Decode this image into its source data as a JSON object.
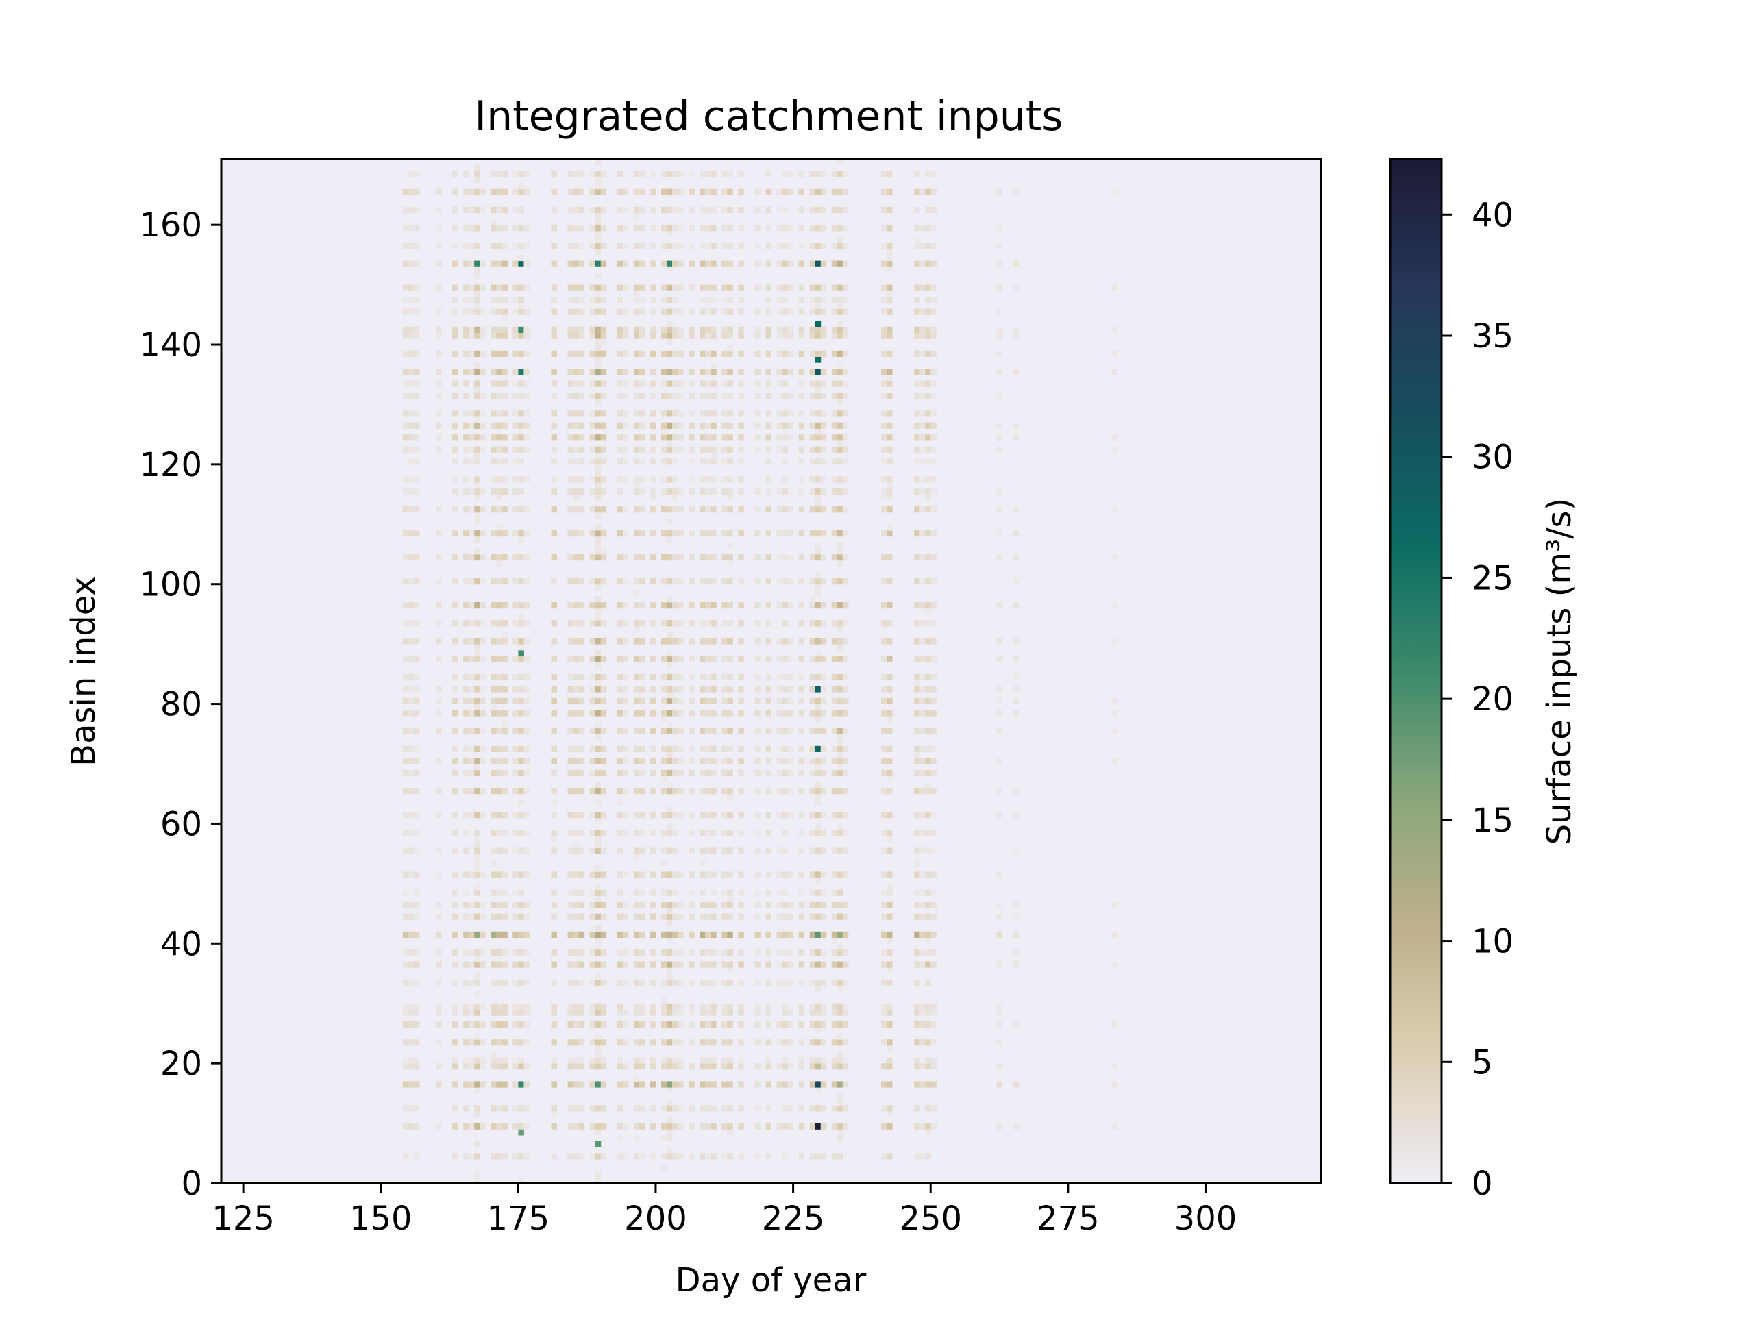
{
  "chart_data": {
    "type": "heatmap",
    "title": "Integrated catchment inputs",
    "xlabel": "Day of year",
    "ylabel": "Basin index",
    "colorbar_label": "Surface inputs (m³/s)",
    "xlim": [
      121,
      321
    ],
    "ylim": [
      0,
      171
    ],
    "x_ticks": [
      125,
      150,
      175,
      200,
      225,
      250,
      275,
      300
    ],
    "y_ticks": [
      0,
      20,
      40,
      60,
      80,
      100,
      120,
      140,
      160
    ],
    "colorbar_range": [
      0,
      42.3
    ],
    "colorbar_ticks": [
      0,
      5,
      10,
      15,
      20,
      25,
      30,
      35,
      40
    ],
    "colormap": [
      "#efedf5",
      "#ddcfb3",
      "#bfb08b",
      "#8aa77b",
      "#3b8a6a",
      "#0b6b63",
      "#174e5d",
      "#263659",
      "#1c1a33"
    ],
    "grid": false,
    "active_days": [
      154,
      155,
      156,
      160,
      163,
      165,
      166,
      167,
      168,
      170,
      171,
      172,
      174,
      175,
      176,
      181,
      184,
      185,
      186,
      188,
      189,
      190,
      193,
      194,
      196,
      197,
      199,
      201,
      202,
      203,
      204,
      206,
      208,
      209,
      210,
      212,
      213,
      215,
      218,
      220,
      222,
      223,
      224,
      226,
      228,
      229,
      230,
      232,
      233,
      234,
      241,
      242,
      247,
      248,
      249,
      250,
      262,
      265,
      283
    ],
    "active_basins": [
      4,
      9,
      12,
      16,
      19,
      20,
      23,
      26,
      28,
      29,
      33,
      36,
      38,
      41,
      44,
      46,
      48,
      51,
      55,
      58,
      61,
      65,
      68,
      70,
      72,
      75,
      78,
      80,
      82,
      84,
      87,
      90,
      93,
      96,
      100,
      104,
      108,
      112,
      115,
      117,
      120,
      122,
      124,
      126,
      128,
      131,
      133,
      135,
      138,
      141,
      142,
      145,
      147,
      149,
      153,
      156,
      159,
      162,
      165,
      168
    ],
    "peaks": [
      {
        "day": 229,
        "basin": 9,
        "value": 42
      },
      {
        "day": 229,
        "basin": 16,
        "value": 33
      },
      {
        "day": 229,
        "basin": 153,
        "value": 30
      },
      {
        "day": 229,
        "basin": 135,
        "value": 30
      },
      {
        "day": 229,
        "basin": 82,
        "value": 28
      },
      {
        "day": 229,
        "basin": 72,
        "value": 27
      },
      {
        "day": 229,
        "basin": 143,
        "value": 27
      },
      {
        "day": 229,
        "basin": 137,
        "value": 26
      },
      {
        "day": 175,
        "basin": 153,
        "value": 27
      },
      {
        "day": 175,
        "basin": 135,
        "value": 24
      },
      {
        "day": 175,
        "basin": 16,
        "value": 22
      },
      {
        "day": 175,
        "basin": 142,
        "value": 21
      },
      {
        "day": 175,
        "basin": 88,
        "value": 21
      },
      {
        "day": 167,
        "basin": 153,
        "value": 22
      },
      {
        "day": 189,
        "basin": 153,
        "value": 23
      },
      {
        "day": 202,
        "basin": 153,
        "value": 22
      },
      {
        "day": 189,
        "basin": 16,
        "value": 20
      },
      {
        "day": 189,
        "basin": 6,
        "value": 19
      },
      {
        "day": 175,
        "basin": 8,
        "value": 18
      }
    ]
  }
}
